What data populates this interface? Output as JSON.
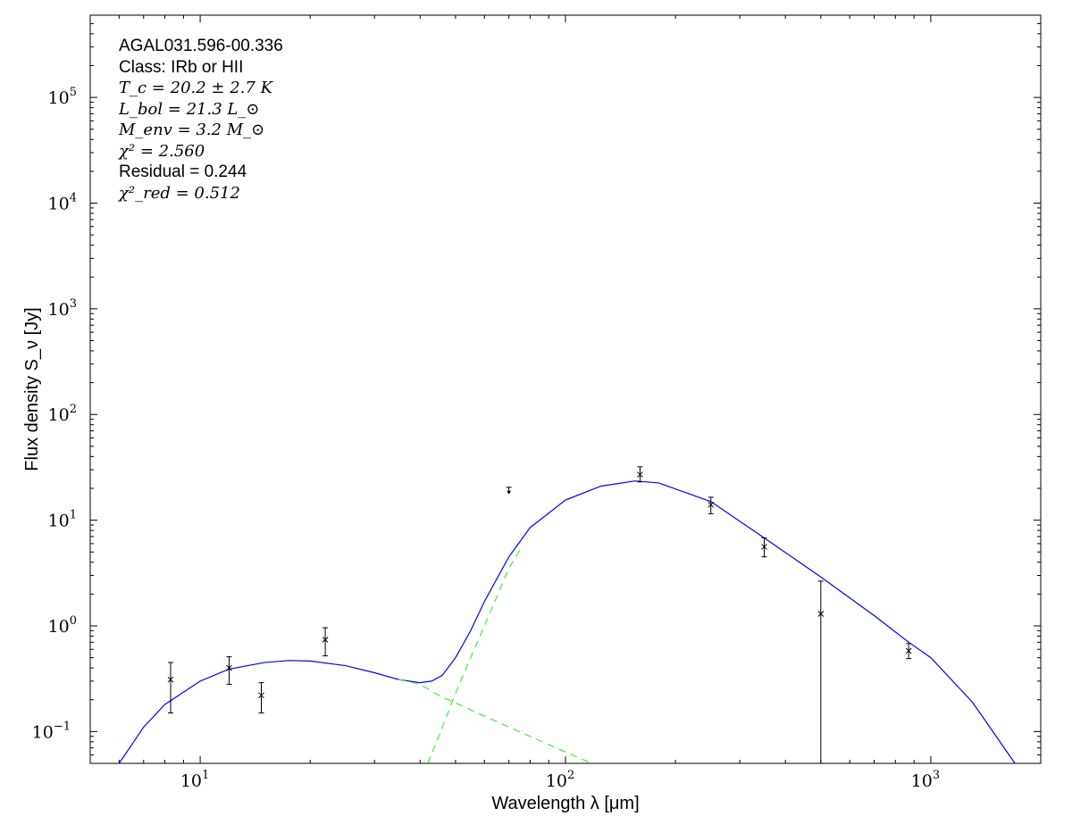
{
  "chart_data": {
    "type": "scatter",
    "xlabel": "Wavelength λ [μm]",
    "ylabel": "Flux density S_ν [Jy]",
    "xscale": "log",
    "yscale": "log",
    "xlim": [
      5,
      2000
    ],
    "ylim": [
      0.05,
      600000
    ],
    "x_ticks": [
      {
        "v": 10,
        "b": "10",
        "e": "1"
      },
      {
        "v": 100,
        "b": "10",
        "e": "2"
      },
      {
        "v": 1000,
        "b": "10",
        "e": "3"
      }
    ],
    "y_ticks": [
      {
        "v": 0.1,
        "b": "10",
        "e": "−1"
      },
      {
        "v": 1,
        "b": "10",
        "e": "0"
      },
      {
        "v": 10,
        "b": "10",
        "e": "1"
      },
      {
        "v": 100,
        "b": "10",
        "e": "2"
      },
      {
        "v": 1000,
        "b": "10",
        "e": "3"
      },
      {
        "v": 10000,
        "b": "10",
        "e": "4"
      },
      {
        "v": 100000,
        "b": "10",
        "e": "5"
      }
    ],
    "grid": false,
    "annotations": [
      "AGAL031.596-00.336",
      "Class: IRb or HII",
      "T_c = 20.2 ± 2.7 K",
      "L_bol = 21.3 L_⊙",
      "M_env = 3.2 M_⊙",
      "χ² = 2.560",
      "Residual = 0.244",
      "χ²_red = 0.512"
    ],
    "points": [
      {
        "x": 8.3,
        "y": 0.31,
        "lo": 0.15,
        "hi": 0.45
      },
      {
        "x": 12,
        "y": 0.4,
        "lo": 0.28,
        "hi": 0.51
      },
      {
        "x": 14.7,
        "y": 0.22,
        "lo": 0.15,
        "hi": 0.29
      },
      {
        "x": 22,
        "y": 0.74,
        "lo": 0.52,
        "hi": 0.96
      },
      {
        "x": 160,
        "y": 27,
        "lo": 23,
        "hi": 32
      },
      {
        "x": 250,
        "y": 14,
        "lo": 11.5,
        "hi": 16.5
      },
      {
        "x": 350,
        "y": 5.6,
        "lo": 4.5,
        "hi": 6.8
      },
      {
        "x": 500,
        "y": 1.3,
        "lo": 0.05,
        "hi": 2.65
      },
      {
        "x": 870,
        "y": 0.58,
        "lo": 0.49,
        "hi": 0.68
      }
    ],
    "upper_limits": [
      {
        "x": 70,
        "y": 20.5
      }
    ],
    "series": [
      {
        "color": "#0000ff",
        "style": "solid",
        "points": [
          [
            6,
            0.05
          ],
          [
            7,
            0.11
          ],
          [
            8,
            0.18
          ],
          [
            10,
            0.3
          ],
          [
            12,
            0.39
          ],
          [
            15,
            0.45
          ],
          [
            17.5,
            0.47
          ],
          [
            20,
            0.465
          ],
          [
            25,
            0.42
          ],
          [
            30,
            0.36
          ],
          [
            35,
            0.31
          ],
          [
            40,
            0.29
          ],
          [
            43,
            0.3
          ],
          [
            46,
            0.34
          ],
          [
            50,
            0.5
          ],
          [
            55,
            0.9
          ],
          [
            60,
            1.7
          ],
          [
            70,
            4.5
          ],
          [
            80,
            8.5
          ],
          [
            100,
            15.5
          ],
          [
            125,
            21
          ],
          [
            155,
            23.5
          ],
          [
            180,
            22.5
          ],
          [
            250,
            15
          ],
          [
            350,
            6.8
          ],
          [
            500,
            2.9
          ],
          [
            700,
            1.25
          ],
          [
            870,
            0.7
          ],
          [
            1000,
            0.5
          ],
          [
            1300,
            0.19
          ],
          [
            1700,
            0.05
          ]
        ]
      },
      {
        "color": "#44ee44",
        "style": "dashed",
        "points": [
          [
            35,
            0.31
          ],
          [
            40,
            0.28
          ],
          [
            45,
            0.22
          ],
          [
            60,
            0.14
          ],
          [
            80,
            0.09
          ],
          [
            100,
            0.064
          ],
          [
            118,
            0.05
          ]
        ]
      },
      {
        "color": "#44ee44",
        "style": "dashed",
        "points": [
          [
            42,
            0.05
          ],
          [
            45,
            0.09
          ],
          [
            50,
            0.23
          ],
          [
            55,
            0.5
          ],
          [
            60,
            1.0
          ],
          [
            70,
            3.5
          ],
          [
            75,
            5.2
          ]
        ]
      }
    ]
  }
}
